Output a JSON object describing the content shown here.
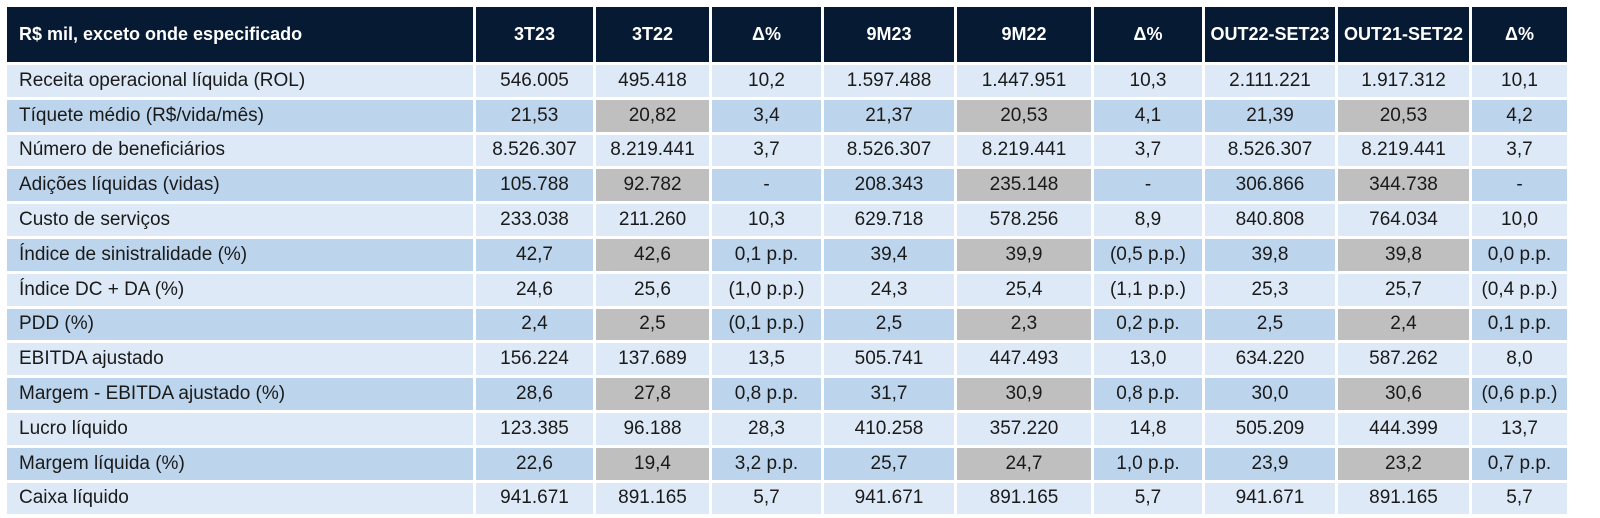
{
  "table": {
    "headers": [
      "R$ mil, exceto onde especificado",
      "3T23",
      "3T22",
      "Δ%",
      "9M23",
      "9M22",
      "Δ%",
      "OUT22-SET23",
      "OUT21-SET22",
      "Δ%"
    ],
    "rows": [
      [
        "Receita operacional líquida (ROL)",
        "546.005",
        "495.418",
        "10,2",
        "1.597.488",
        "1.447.951",
        "10,3",
        "2.111.221",
        "1.917.312",
        "10,1"
      ],
      [
        "Tíquete médio (R$/vida/mês)",
        "21,53",
        "20,82",
        "3,4",
        "21,37",
        "20,53",
        "4,1",
        "21,39",
        "20,53",
        "4,2"
      ],
      [
        "Número de beneficiários",
        "8.526.307",
        "8.219.441",
        "3,7",
        "8.526.307",
        "8.219.441",
        "3,7",
        "8.526.307",
        "8.219.441",
        "3,7"
      ],
      [
        "Adições líquidas (vidas)",
        "105.788",
        "92.782",
        "-",
        "208.343",
        "235.148",
        "-",
        "306.866",
        "344.738",
        "-"
      ],
      [
        "Custo de serviços",
        "233.038",
        "211.260",
        "10,3",
        "629.718",
        "578.256",
        "8,9",
        "840.808",
        "764.034",
        "10,0"
      ],
      [
        "Índice de sinistralidade (%)",
        "42,7",
        "42,6",
        "0,1 p.p.",
        "39,4",
        "39,9",
        "(0,5 p.p.)",
        "39,8",
        "39,8",
        "0,0 p.p."
      ],
      [
        "Índice DC + DA (%)",
        "24,6",
        "25,6",
        "(1,0 p.p.)",
        "24,3",
        "25,4",
        "(1,1 p.p.)",
        "25,3",
        "25,7",
        "(0,4 p.p.)"
      ],
      [
        "PDD  (%)",
        "2,4",
        "2,5",
        "(0,1 p.p.)",
        "2,5",
        "2,3",
        "0,2 p.p.",
        "2,5",
        "2,4",
        "0,1 p.p."
      ],
      [
        "EBITDA ajustado",
        "156.224",
        "137.689",
        "13,5",
        "505.741",
        "447.493",
        "13,0",
        "634.220",
        "587.262",
        "8,0"
      ],
      [
        "Margem - EBITDA ajustado (%)",
        "28,6",
        "27,8",
        "0,8 p.p.",
        "31,7",
        "30,9",
        "0,8 p.p.",
        "30,0",
        "30,6",
        "(0,6 p.p.)"
      ],
      [
        "Lucro líquido",
        "123.385",
        "96.188",
        "28,3",
        "410.258",
        "357.220",
        "14,8",
        "505.209",
        "444.399",
        "13,7"
      ],
      [
        "Margem líquida (%)",
        "22,6",
        "19,4",
        "3,2 p.p.",
        "25,7",
        "24,7",
        "1,0 p.p.",
        "23,9",
        "23,2",
        "0,7 p.p."
      ],
      [
        "Caixa líquido",
        "941.671",
        "891.165",
        "5,7",
        "941.671",
        "891.165",
        "5,7",
        "941.671",
        "891.165",
        "5,7"
      ]
    ]
  },
  "colors": {
    "header_bg": "#061a34",
    "row_light": "#dde9f6",
    "row_mid": "#bcd4ec",
    "comparison_gray": "#bfbfbf"
  }
}
